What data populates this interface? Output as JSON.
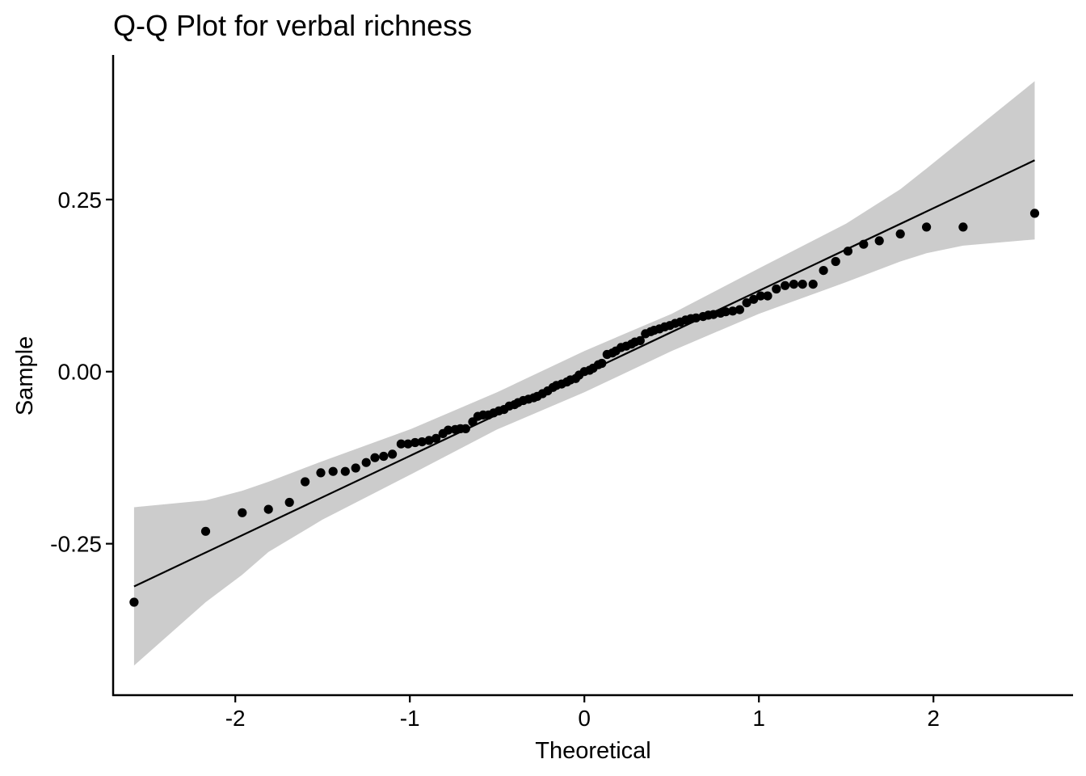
{
  "chart_data": {
    "type": "scatter",
    "title": "Q-Q Plot for verbal richness",
    "xlabel": "Theoretical",
    "ylabel": "Sample",
    "xlim": [
      -2.7,
      2.8
    ],
    "ylim": [
      -0.47,
      0.46
    ],
    "x_ticks": [
      {
        "value": -2,
        "label": "-2"
      },
      {
        "value": -1,
        "label": "-1"
      },
      {
        "value": 0,
        "label": "0"
      },
      {
        "value": 1,
        "label": "1"
      },
      {
        "value": 2,
        "label": "2"
      }
    ],
    "y_ticks": [
      {
        "value": -0.25,
        "label": "-0.25"
      },
      {
        "value": 0,
        "label": "0.00"
      },
      {
        "value": 0.25,
        "label": "0.25"
      }
    ],
    "grid": false,
    "legend": "none",
    "colors": {
      "points": "#000000",
      "line": "#000000",
      "band": "#cccccc",
      "axis": "#000000"
    },
    "reference_line": {
      "x": [
        -2.58,
        2.58
      ],
      "y": [
        -0.312,
        0.307
      ]
    },
    "confidence_band": {
      "x": [
        -2.58,
        -2.17,
        -1.96,
        -1.81,
        -1.5,
        -1.0,
        -0.5,
        0.0,
        0.5,
        1.0,
        1.5,
        1.81,
        1.96,
        2.17,
        2.58
      ],
      "upper": [
        -0.197,
        -0.187,
        -0.173,
        -0.16,
        -0.13,
        -0.084,
        -0.03,
        0.03,
        0.084,
        0.15,
        0.215,
        0.265,
        0.295,
        0.338,
        0.422
      ],
      "lower": [
        -0.427,
        -0.335,
        -0.295,
        -0.262,
        -0.215,
        -0.15,
        -0.084,
        -0.03,
        0.03,
        0.084,
        0.13,
        0.16,
        0.172,
        0.183,
        0.192
      ]
    },
    "points": {
      "x": [
        -2.58,
        -2.17,
        -1.96,
        -1.81,
        -1.69,
        -1.6,
        -1.51,
        -1.44,
        -1.37,
        -1.31,
        -1.25,
        -1.2,
        -1.15,
        -1.1,
        -1.05,
        -1.01,
        -0.97,
        -0.93,
        -0.89,
        -0.85,
        -0.81,
        -0.78,
        -0.74,
        -0.71,
        -0.68,
        -0.64,
        -0.61,
        -0.58,
        -0.55,
        -0.52,
        -0.49,
        -0.46,
        -0.43,
        -0.4,
        -0.38,
        -0.35,
        -0.32,
        -0.29,
        -0.27,
        -0.24,
        -0.21,
        -0.18,
        -0.16,
        -0.13,
        -0.1,
        -0.08,
        -0.05,
        -0.03,
        0.0,
        0.03,
        0.05,
        0.08,
        0.1,
        0.13,
        0.16,
        0.18,
        0.21,
        0.24,
        0.27,
        0.29,
        0.32,
        0.35,
        0.38,
        0.4,
        0.43,
        0.46,
        0.49,
        0.52,
        0.55,
        0.58,
        0.61,
        0.64,
        0.68,
        0.71,
        0.74,
        0.78,
        0.81,
        0.85,
        0.89,
        0.93,
        0.97,
        1.01,
        1.05,
        1.1,
        1.15,
        1.2,
        1.25,
        1.31,
        1.37,
        1.44,
        1.51,
        1.6,
        1.69,
        1.81,
        1.96,
        2.17,
        2.58
      ],
      "y": [
        -0.335,
        -0.232,
        -0.205,
        -0.2,
        -0.19,
        -0.16,
        -0.147,
        -0.145,
        -0.145,
        -0.14,
        -0.132,
        -0.125,
        -0.123,
        -0.12,
        -0.105,
        -0.105,
        -0.103,
        -0.102,
        -0.1,
        -0.097,
        -0.09,
        -0.085,
        -0.084,
        -0.083,
        -0.083,
        -0.073,
        -0.065,
        -0.063,
        -0.063,
        -0.06,
        -0.057,
        -0.055,
        -0.05,
        -0.048,
        -0.045,
        -0.042,
        -0.04,
        -0.038,
        -0.036,
        -0.032,
        -0.028,
        -0.023,
        -0.02,
        -0.018,
        -0.015,
        -0.012,
        -0.01,
        -0.005,
        0.0,
        0.002,
        0.005,
        0.01,
        0.012,
        0.025,
        0.027,
        0.03,
        0.035,
        0.037,
        0.04,
        0.043,
        0.045,
        0.055,
        0.058,
        0.06,
        0.062,
        0.065,
        0.067,
        0.07,
        0.072,
        0.075,
        0.077,
        0.078,
        0.08,
        0.082,
        0.083,
        0.085,
        0.087,
        0.088,
        0.09,
        0.1,
        0.105,
        0.11,
        0.11,
        0.12,
        0.125,
        0.127,
        0.127,
        0.127,
        0.147,
        0.16,
        0.175,
        0.185,
        0.19,
        0.2,
        0.21,
        0.21,
        0.23
      ]
    }
  }
}
